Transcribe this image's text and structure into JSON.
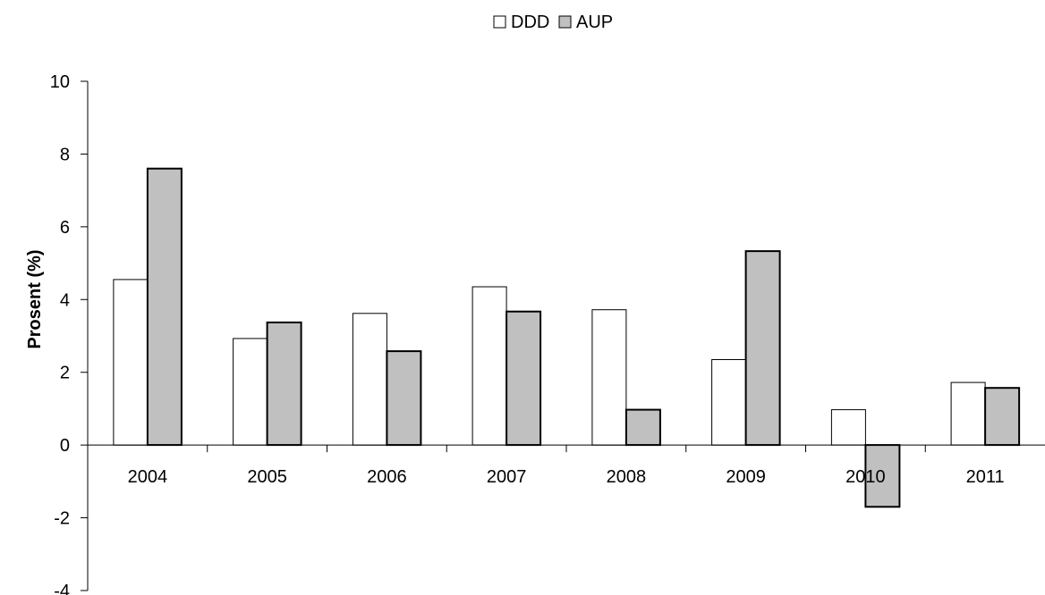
{
  "chart_data": {
    "type": "bar",
    "categories": [
      "2004",
      "2005",
      "2006",
      "2007",
      "2008",
      "2009",
      "2010",
      "2011"
    ],
    "series": [
      {
        "name": "DDD",
        "color": "#ffffff",
        "values": [
          4.55,
          2.93,
          3.62,
          4.35,
          3.72,
          2.35,
          0.97,
          1.72
        ]
      },
      {
        "name": "AUP",
        "color": "#c0c0c0",
        "values": [
          7.6,
          3.37,
          2.58,
          3.67,
          0.97,
          5.33,
          -1.7,
          1.57
        ]
      }
    ],
    "title": "",
    "xlabel": "",
    "ylabel": "Prosent (%)",
    "ylim": [
      -4,
      10
    ],
    "yticks": [
      "-4",
      "-2",
      "0",
      "2",
      "4",
      "6",
      "8",
      "10"
    ],
    "grid": false,
    "legend_position": "top-center"
  }
}
